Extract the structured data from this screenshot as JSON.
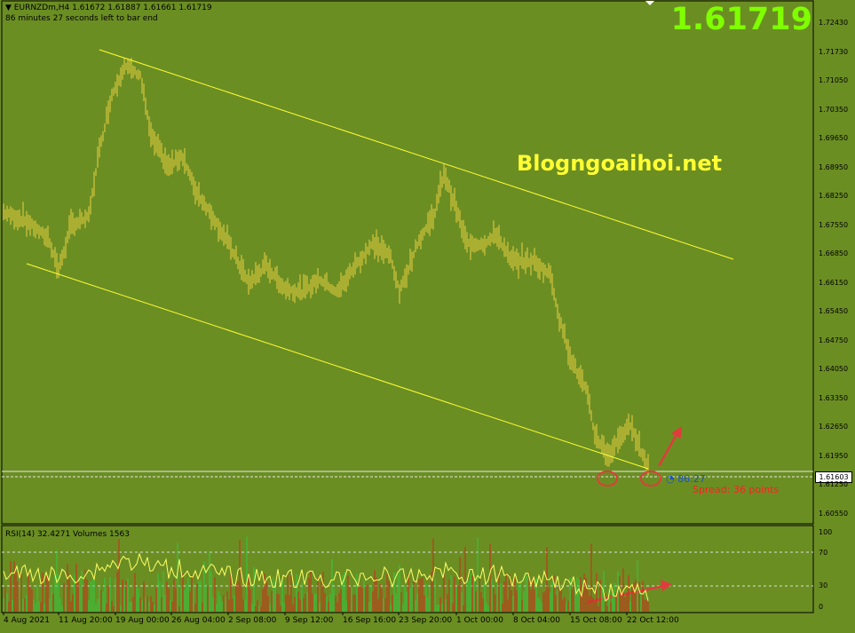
{
  "header": {
    "symbol_line": "EURNZDm,H4  1.61672 1.61887 1.61661 1.61719",
    "timer_line": "86 minutes 27 seconds left to bar end"
  },
  "big_price": "1.61719",
  "watermark": "Blogngoaihoi.net",
  "spread_label": "Spread: 36 points",
  "bar_timer": "86:27",
  "current_price_tag": "1.61603",
  "price_axis": [
    "1.72430",
    "1.71730",
    "1.71050",
    "1.70350",
    "1.69650",
    "1.68950",
    "1.68250",
    "1.67550",
    "1.66850",
    "1.66150",
    "1.65450",
    "1.64750",
    "1.64050",
    "1.63350",
    "1.62650",
    "1.61950",
    "1.61250",
    "1.60550"
  ],
  "rsi_info": "RSI(14) 32.4271  Volumes 1563",
  "rsi_axis": [
    "100",
    "70",
    "30",
    "0"
  ],
  "time_axis": [
    "4 Aug 2021",
    "11 Aug 20:00",
    "19 Aug 00:00",
    "26 Aug 04:00",
    "2 Sep 08:00",
    "9 Sep 12:00",
    "16 Sep 16:00",
    "23 Sep 20:00",
    "1 Oct 00:00",
    "8 Oct 04:00",
    "15 Oct 08:00",
    "22 Oct 12:00"
  ],
  "colors": {
    "background": "#6b8e23",
    "candle": "#e8d040",
    "channel": "#ffff33",
    "annotation": "#e03c3c",
    "volume": "#cc2a1a",
    "volume_alt": "#2ecc40",
    "rsi_line": "#ffff66"
  },
  "icons": [
    "dropdown-arrow-icon",
    "bar-timer-icon"
  ]
}
